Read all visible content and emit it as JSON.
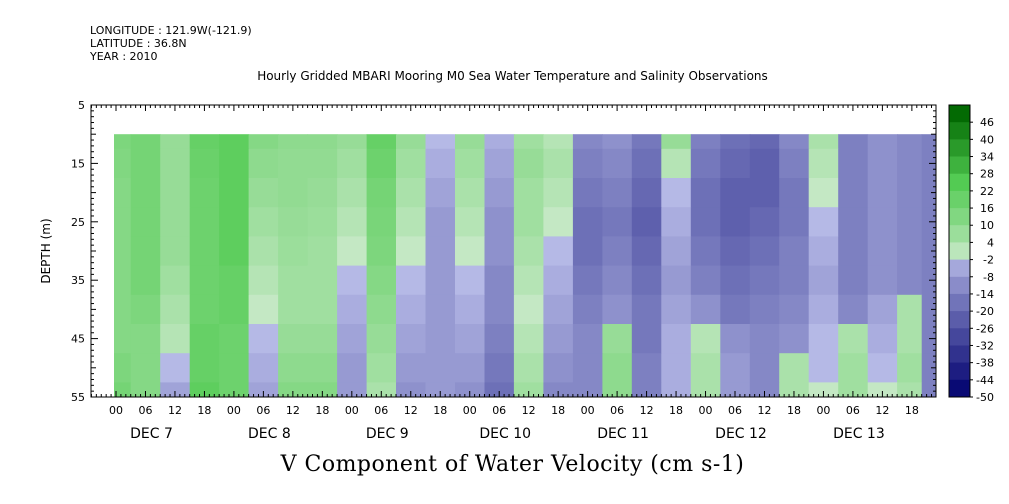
{
  "header": {
    "longitude": "LONGITUDE : 121.9W(-121.9)",
    "latitude": "LATITUDE : 36.8N",
    "year": "YEAR : 2010"
  },
  "chart_data": {
    "type": "heatmap",
    "title": "Hourly Gridded MBARI Mooring M0 Sea Water Temperature and Salinity Observations",
    "variable_title": "V Component of Water Velocity (cm s-1)",
    "ylabel": "DEPTH (m)",
    "y_range": [
      5,
      55
    ],
    "y_inverted": true,
    "y_ticks": [
      5,
      15,
      25,
      35,
      45,
      55
    ],
    "x_range_hours": [
      0,
      166
    ],
    "hour_tick_labels": [
      "00",
      "06",
      "12",
      "18"
    ],
    "day_labels": [
      "DEC  7",
      "DEC  8",
      "DEC  9",
      "DEC 10",
      "DEC 11",
      "DEC 12",
      "DEC 13"
    ],
    "colorbar": {
      "labels": [
        "46",
        "40",
        "34",
        "28",
        "22",
        "16",
        "10",
        "4",
        "-2",
        "-8",
        "-14",
        "-20",
        "-26",
        "-32",
        "-38",
        "-44",
        "-50"
      ],
      "min": -50,
      "max": 52,
      "step": 6
    },
    "depths": [
      10,
      15,
      20,
      25,
      30,
      35,
      40,
      45,
      50,
      55
    ],
    "times": [
      0,
      6,
      12,
      18,
      24,
      30,
      36,
      42,
      48,
      54,
      60,
      66,
      72,
      78,
      84,
      90,
      96,
      102,
      108,
      114,
      120,
      126,
      132,
      138,
      144,
      150,
      156,
      162,
      166
    ],
    "values": [
      [
        14,
        16,
        8,
        20,
        22,
        12,
        10,
        10,
        8,
        20,
        8,
        -2,
        8,
        -4,
        6,
        2,
        -12,
        -10,
        -16,
        8,
        -14,
        -18,
        -20,
        -12,
        4,
        -14,
        -10,
        -12,
        -14
      ],
      [
        13,
        16,
        8,
        19,
        22,
        10,
        9,
        9,
        6,
        18,
        6,
        -4,
        6,
        -6,
        8,
        4,
        -14,
        -12,
        -18,
        2,
        -16,
        -20,
        -22,
        -14,
        2,
        -14,
        -10,
        -12,
        -14
      ],
      [
        12,
        16,
        8,
        18,
        22,
        8,
        9,
        8,
        4,
        16,
        4,
        -6,
        4,
        -8,
        6,
        2,
        -16,
        -14,
        -20,
        -2,
        -18,
        -22,
        -22,
        -16,
        0,
        -14,
        -10,
        -12,
        -14
      ],
      [
        12,
        16,
        8,
        18,
        22,
        6,
        8,
        7,
        2,
        15,
        2,
        -8,
        2,
        -10,
        6,
        0,
        -18,
        -16,
        -22,
        -4,
        -18,
        -22,
        -20,
        -16,
        -2,
        -14,
        -10,
        -12,
        -14
      ],
      [
        12,
        16,
        8,
        18,
        22,
        4,
        7,
        6,
        0,
        14,
        0,
        -8,
        0,
        -10,
        4,
        -2,
        -18,
        -14,
        -20,
        -6,
        -16,
        -20,
        -18,
        -14,
        -4,
        -14,
        -10,
        -12,
        -14
      ],
      [
        12,
        16,
        6,
        18,
        20,
        2,
        6,
        6,
        -2,
        12,
        -2,
        -8,
        -2,
        -12,
        2,
        -4,
        -16,
        -12,
        -18,
        -8,
        -14,
        -18,
        -16,
        -14,
        -6,
        -14,
        -10,
        -12,
        -14
      ],
      [
        12,
        14,
        4,
        18,
        20,
        0,
        6,
        6,
        -4,
        10,
        -4,
        -8,
        -4,
        -12,
        0,
        -6,
        -14,
        -10,
        -16,
        -6,
        -10,
        -16,
        -14,
        -12,
        -4,
        -12,
        -6,
        4,
        -14
      ],
      [
        12,
        12,
        2,
        20,
        18,
        -2,
        8,
        8,
        -6,
        8,
        -6,
        -8,
        -6,
        -14,
        2,
        -8,
        -12,
        8,
        -16,
        -4,
        2,
        -10,
        -12,
        -10,
        -2,
        4,
        -4,
        4,
        -14
      ],
      [
        14,
        12,
        -2,
        20,
        18,
        -4,
        10,
        10,
        -8,
        6,
        -8,
        -8,
        -8,
        -16,
        4,
        -10,
        -12,
        10,
        -14,
        -4,
        4,
        -8,
        -12,
        4,
        -2,
        6,
        -2,
        6,
        -14
      ],
      [
        16,
        12,
        -6,
        22,
        18,
        -6,
        12,
        12,
        -8,
        4,
        -10,
        -8,
        -10,
        -18,
        6,
        -12,
        -12,
        10,
        -14,
        -4,
        4,
        -8,
        -12,
        4,
        0,
        6,
        0,
        4,
        -14
      ]
    ]
  }
}
